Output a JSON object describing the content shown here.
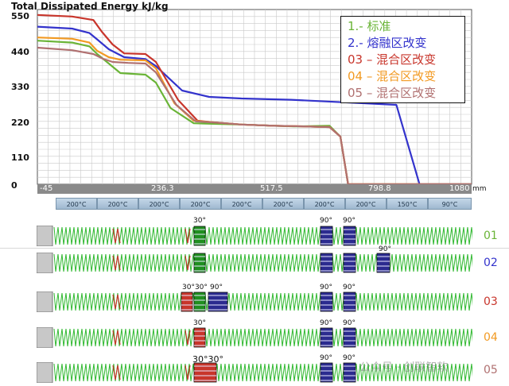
{
  "chart_data": {
    "type": "line",
    "title": "Total Dissipated Energy kJ/kg",
    "xlabel": "mm",
    "ylabel": "",
    "xlim": [
      -45,
      1080
    ],
    "ylim": [
      0,
      550
    ],
    "y_ticks": [
      "550",
      "440",
      "330",
      "220",
      "110",
      "0"
    ],
    "x_ticks": [
      "-45",
      "236.3",
      "517.5",
      "798.8",
      "1080"
    ],
    "grid": true,
    "legend_position": "top-right",
    "series": [
      {
        "name": "1.- 标准",
        "color": "#6ab437",
        "x": [
          -45,
          45,
          90,
          110,
          140,
          170,
          235,
          262,
          300,
          360,
          420,
          484,
          570,
          620,
          712,
          740,
          760,
          1080
        ],
        "y": [
          452,
          446,
          434,
          410,
          380,
          350,
          345,
          320,
          240,
          192,
          190,
          188,
          184,
          182,
          184,
          150,
          0,
          0
        ]
      },
      {
        "name": "2.- 熔融区改变",
        "color": "#3333cc",
        "x": [
          -45,
          45,
          90,
          110,
          140,
          180,
          235,
          262,
          330,
          400,
          484,
          612,
          885,
          945,
          1080
        ],
        "y": [
          496,
          490,
          476,
          456,
          425,
          400,
          394,
          372,
          295,
          275,
          270,
          266,
          250,
          0,
          0
        ]
      },
      {
        "name": "03 – 混合区改变",
        "color": "#c8352b",
        "x": [
          -45,
          45,
          100,
          122,
          150,
          180,
          235,
          262,
          320,
          370,
          420,
          484,
          570,
          620,
          712,
          740,
          760,
          1080
        ],
        "y": [
          533,
          528,
          517,
          480,
          440,
          412,
          410,
          385,
          265,
          200,
          194,
          188,
          184,
          183,
          180,
          150,
          0,
          0
        ]
      },
      {
        "name": "04 – 混合区改变",
        "color": "#f29a22",
        "x": [
          -45,
          45,
          90,
          110,
          140,
          170,
          235,
          262,
          310,
          360,
          420,
          484,
          570,
          620,
          712,
          740,
          760,
          1080
        ],
        "y": [
          462,
          458,
          446,
          420,
          400,
          392,
          390,
          365,
          255,
          200,
          194,
          188,
          184,
          183,
          180,
          150,
          0,
          0
        ]
      },
      {
        "name": "05 – 混合区改变",
        "color": "#b07070",
        "x": [
          -45,
          45,
          100,
          125,
          150,
          190,
          235,
          262,
          315,
          365,
          420,
          484,
          570,
          620,
          712,
          740,
          760,
          1080
        ],
        "y": [
          430,
          422,
          410,
          395,
          385,
          382,
          380,
          352,
          250,
          198,
          194,
          188,
          184,
          183,
          180,
          150,
          0,
          0
        ]
      }
    ]
  },
  "temperatures": [
    "200°C",
    "200°C",
    "200°C",
    "200°C",
    "200°C",
    "200°C",
    "200°C",
    "200°C",
    "150°C",
    "90°C"
  ],
  "strips": [
    {
      "label": "01",
      "color": "#6ab437",
      "angles": [
        "30°",
        "90°",
        "90°"
      ]
    },
    {
      "label": "02",
      "color": "#3333cc",
      "angles": [
        "90°"
      ]
    },
    {
      "label": "03",
      "color": "#c8352b",
      "angles": [
        "30°30°",
        "90°",
        "90°",
        "90°"
      ]
    },
    {
      "label": "04",
      "color": "#f29a22",
      "angles": [
        "30°",
        "90°",
        "90°"
      ]
    },
    {
      "label": "05",
      "color": "#b07070",
      "angles": [
        "30°30°",
        "90°",
        "90°"
      ]
    }
  ],
  "watermark": "公众号 · 创联智软"
}
